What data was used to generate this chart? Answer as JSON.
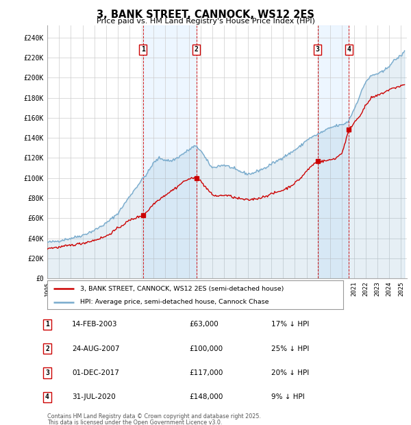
{
  "title": "3, BANK STREET, CANNOCK, WS12 2ES",
  "subtitle": "Price paid vs. HM Land Registry's House Price Index (HPI)",
  "xlim_start": 1995.0,
  "xlim_end": 2025.5,
  "ylim_min": 0,
  "ylim_max": 252000,
  "yticks": [
    0,
    20000,
    40000,
    60000,
    80000,
    100000,
    120000,
    140000,
    160000,
    180000,
    200000,
    220000,
    240000
  ],
  "ytick_labels": [
    "£0",
    "£20K",
    "£40K",
    "£60K",
    "£80K",
    "£100K",
    "£120K",
    "£140K",
    "£160K",
    "£180K",
    "£200K",
    "£220K",
    "£240K"
  ],
  "transactions": [
    {
      "num": 1,
      "date_str": "14-FEB-2003",
      "year": 2003.12,
      "price": 63000,
      "pct": "17%",
      "direction": "↓"
    },
    {
      "num": 2,
      "date_str": "24-AUG-2007",
      "year": 2007.65,
      "price": 100000,
      "pct": "25%",
      "direction": "↓"
    },
    {
      "num": 3,
      "date_str": "01-DEC-2017",
      "year": 2017.92,
      "price": 117000,
      "pct": "20%",
      "direction": "↓"
    },
    {
      "num": 4,
      "date_str": "31-JUL-2020",
      "year": 2020.58,
      "price": 148000,
      "pct": "9%",
      "direction": "↓"
    }
  ],
  "legend_line1": "3, BANK STREET, CANNOCK, WS12 2ES (semi-detached house)",
  "legend_line2": "HPI: Average price, semi-detached house, Cannock Chase",
  "footer1": "Contains HM Land Registry data © Crown copyright and database right 2025.",
  "footer2": "This data is licensed under the Open Government Licence v3.0.",
  "color_red": "#cc0000",
  "color_blue": "#77aacc",
  "color_fill_blue": "#ddeeff",
  "background_color": "#ffffff",
  "grid_color": "#cccccc",
  "hpi_anchors": [
    [
      1995.0,
      36000
    ],
    [
      1995.5,
      36500
    ],
    [
      1996.0,
      37500
    ],
    [
      1997.0,
      40000
    ],
    [
      1998.0,
      43000
    ],
    [
      1999.0,
      48000
    ],
    [
      2000.0,
      55000
    ],
    [
      2001.0,
      65000
    ],
    [
      2002.0,
      82000
    ],
    [
      2003.0,
      98000
    ],
    [
      2003.5,
      105000
    ],
    [
      2004.0,
      115000
    ],
    [
      2004.5,
      120000
    ],
    [
      2005.0,
      118000
    ],
    [
      2005.5,
      117000
    ],
    [
      2006.0,
      120000
    ],
    [
      2006.5,
      124000
    ],
    [
      2007.0,
      128000
    ],
    [
      2007.5,
      132000
    ],
    [
      2008.0,
      128000
    ],
    [
      2008.5,
      118000
    ],
    [
      2009.0,
      110000
    ],
    [
      2009.5,
      112000
    ],
    [
      2010.0,
      113000
    ],
    [
      2010.5,
      111000
    ],
    [
      2011.0,
      108000
    ],
    [
      2011.5,
      106000
    ],
    [
      2012.0,
      104000
    ],
    [
      2012.5,
      105000
    ],
    [
      2013.0,
      108000
    ],
    [
      2013.5,
      110000
    ],
    [
      2014.0,
      114000
    ],
    [
      2014.5,
      117000
    ],
    [
      2015.0,
      121000
    ],
    [
      2015.5,
      124000
    ],
    [
      2016.0,
      128000
    ],
    [
      2016.5,
      132000
    ],
    [
      2017.0,
      138000
    ],
    [
      2017.5,
      141000
    ],
    [
      2018.0,
      144000
    ],
    [
      2018.5,
      147000
    ],
    [
      2019.0,
      150000
    ],
    [
      2019.5,
      152000
    ],
    [
      2020.0,
      153000
    ],
    [
      2020.5,
      156000
    ],
    [
      2021.0,
      168000
    ],
    [
      2021.5,
      182000
    ],
    [
      2022.0,
      196000
    ],
    [
      2022.5,
      202000
    ],
    [
      2023.0,
      204000
    ],
    [
      2023.5,
      206000
    ],
    [
      2024.0,
      212000
    ],
    [
      2024.5,
      218000
    ],
    [
      2025.0,
      222000
    ],
    [
      2025.3,
      226000
    ]
  ],
  "red_anchors": [
    [
      1995.0,
      30000
    ],
    [
      1995.5,
      30500
    ],
    [
      1996.0,
      31000
    ],
    [
      1997.0,
      33000
    ],
    [
      1998.0,
      35000
    ],
    [
      1999.0,
      38000
    ],
    [
      2000.0,
      42000
    ],
    [
      2001.0,
      50000
    ],
    [
      2002.0,
      58000
    ],
    [
      2003.12,
      63000
    ],
    [
      2003.5,
      67000
    ],
    [
      2004.0,
      74000
    ],
    [
      2004.5,
      79000
    ],
    [
      2005.0,
      83000
    ],
    [
      2005.5,
      87000
    ],
    [
      2006.0,
      91000
    ],
    [
      2006.5,
      96000
    ],
    [
      2007.0,
      99000
    ],
    [
      2007.65,
      100000
    ],
    [
      2008.0,
      97000
    ],
    [
      2008.5,
      90000
    ],
    [
      2009.0,
      83000
    ],
    [
      2009.5,
      82000
    ],
    [
      2010.0,
      83000
    ],
    [
      2010.5,
      82000
    ],
    [
      2011.0,
      80000
    ],
    [
      2011.5,
      79000
    ],
    [
      2012.0,
      78000
    ],
    [
      2012.5,
      79000
    ],
    [
      2013.0,
      80000
    ],
    [
      2013.5,
      82000
    ],
    [
      2014.0,
      84000
    ],
    [
      2014.5,
      86000
    ],
    [
      2015.0,
      88000
    ],
    [
      2015.5,
      91000
    ],
    [
      2016.0,
      95000
    ],
    [
      2016.5,
      100000
    ],
    [
      2017.0,
      107000
    ],
    [
      2017.5,
      113000
    ],
    [
      2017.92,
      117000
    ],
    [
      2018.0,
      116000
    ],
    [
      2018.5,
      117000
    ],
    [
      2019.0,
      118000
    ],
    [
      2019.5,
      120000
    ],
    [
      2020.0,
      125000
    ],
    [
      2020.58,
      148000
    ],
    [
      2021.0,
      155000
    ],
    [
      2021.5,
      162000
    ],
    [
      2022.0,
      172000
    ],
    [
      2022.5,
      180000
    ],
    [
      2023.0,
      182000
    ],
    [
      2023.5,
      185000
    ],
    [
      2024.0,
      188000
    ],
    [
      2024.5,
      190000
    ],
    [
      2025.0,
      192000
    ],
    [
      2025.3,
      193000
    ]
  ]
}
